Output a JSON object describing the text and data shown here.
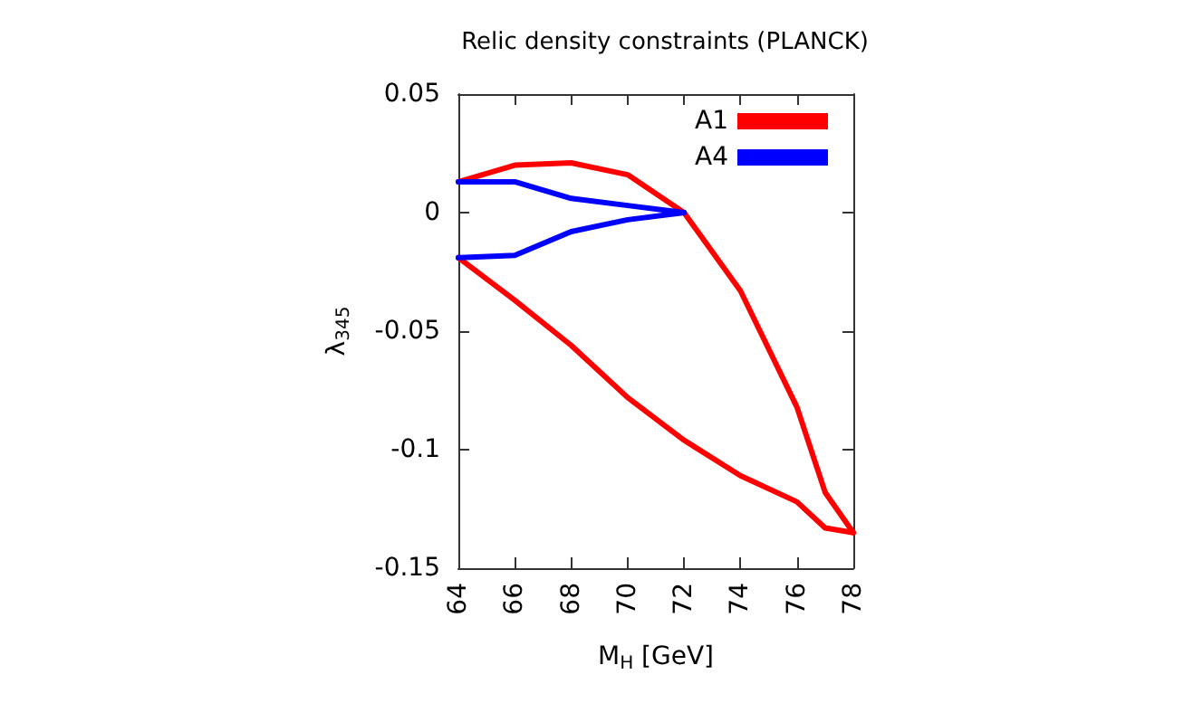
{
  "chart_data": {
    "type": "line",
    "title": "Relic density constraints (PLANCK)",
    "xlabel": "M$_{H}$ [GeV]",
    "ylabel": "λ$_{345}$",
    "xlim": [
      64,
      78
    ],
    "xticks": [
      64,
      66,
      68,
      70,
      72,
      74,
      76,
      78
    ],
    "ylim": [
      -0.15,
      0.05
    ],
    "yticks": [
      -0.15,
      -0.1,
      -0.05,
      0,
      0.05
    ],
    "legend": "top right",
    "marker": "none",
    "line_style": "solid",
    "series": [
      {
        "name": "A1",
        "color": "#ff0000",
        "x": [
          64,
          66,
          68,
          70,
          72,
          74,
          76,
          77,
          78
        ],
        "values": [
          0.013,
          0.02,
          0.021,
          0.016,
          0.0,
          -0.033,
          -0.082,
          -0.118,
          -0.135
        ]
      },
      {
        "color": "#ff0000",
        "x": [
          64,
          66,
          68,
          70,
          72,
          74,
          76,
          77,
          78
        ],
        "values": [
          -0.019,
          -0.037,
          -0.056,
          -0.078,
          -0.096,
          -0.111,
          -0.122,
          -0.133,
          -0.135
        ]
      },
      {
        "name": "A4",
        "color": "#0000ff",
        "x": [
          64,
          66,
          68,
          70,
          72
        ],
        "values": [
          0.013,
          0.013,
          0.006,
          0.003,
          0.0
        ]
      },
      {
        "color": "#0000ff",
        "x": [
          64,
          66,
          68,
          70,
          72
        ],
        "values": [
          -0.019,
          -0.018,
          -0.008,
          -0.003,
          0.0
        ]
      }
    ]
  }
}
